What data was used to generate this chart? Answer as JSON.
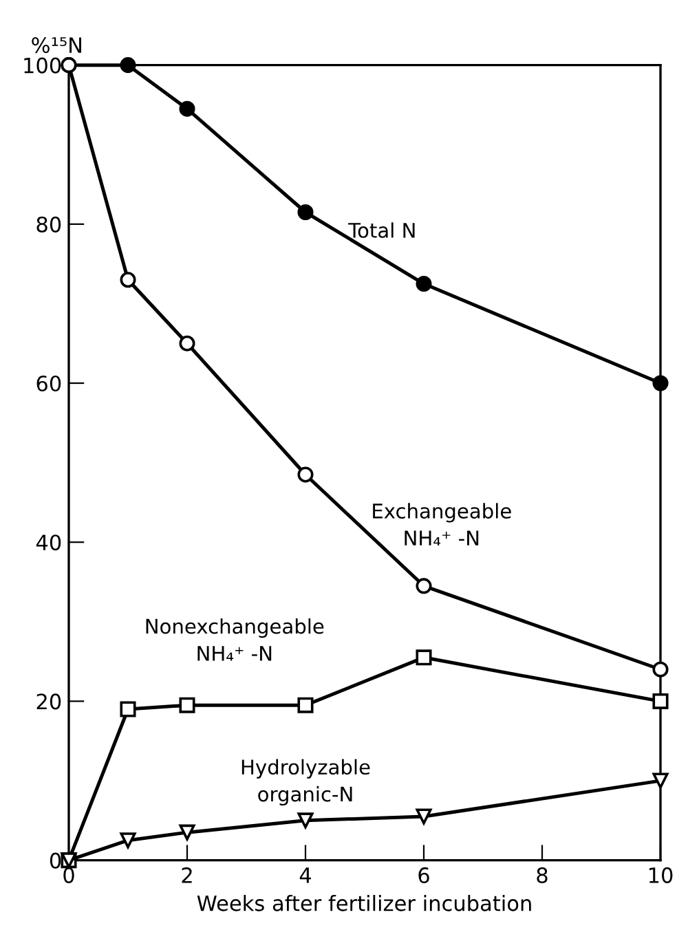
{
  "chart_data": {
    "type": "line",
    "xlabel": "Weeks after fertilizer incubation",
    "ylabel": "%¹⁵N",
    "x": [
      0,
      1,
      2,
      4,
      6,
      10
    ],
    "xlim": [
      0,
      10
    ],
    "xticks": [
      0,
      2,
      4,
      6,
      8,
      10
    ],
    "ylim": [
      0,
      100
    ],
    "yticks": [
      0,
      20,
      40,
      60,
      80,
      100
    ],
    "grid": false,
    "legend": false,
    "line_style": "solid",
    "series": [
      {
        "name": "Total N",
        "color": "#000000",
        "marker": "circle",
        "values": [
          100,
          100,
          94.5,
          81.5,
          72.5,
          60
        ]
      },
      {
        "name": "Exchangeable\nNH₄⁺ -N",
        "color": "#000000",
        "marker": "circle_open",
        "values": [
          100,
          73,
          65,
          48.5,
          34.5,
          24
        ]
      },
      {
        "name": "Nonexchangeable\nNH₄⁺ -N",
        "color": "#000000",
        "marker": "square_open",
        "values": [
          0,
          19,
          19.5,
          19.5,
          25.5,
          20
        ]
      },
      {
        "name": "Hydrolyzable\norganic-N",
        "color": "#000000",
        "marker": "triangle_down_open",
        "values": [
          0,
          2.5,
          3.5,
          5,
          5.5,
          10
        ]
      }
    ]
  }
}
